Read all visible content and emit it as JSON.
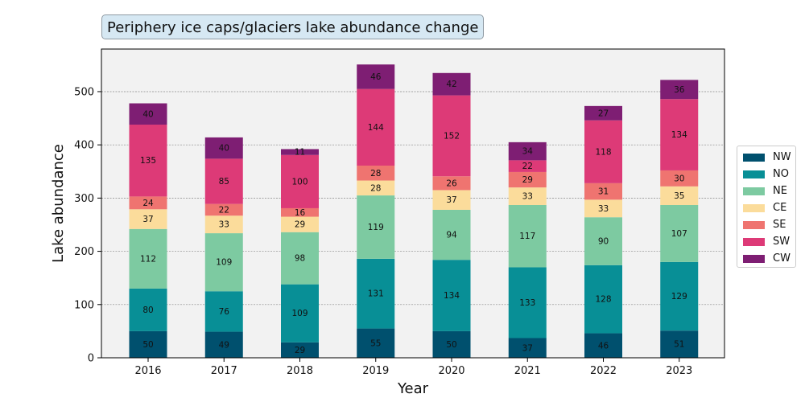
{
  "chart_data": {
    "type": "bar",
    "stacked": true,
    "title": "Periphery ice caps/glaciers lake abundance change",
    "xlabel": "Year",
    "ylabel": "Lake abundance",
    "ylim": [
      0,
      580
    ],
    "yticks": [
      0,
      100,
      200,
      300,
      400,
      500
    ],
    "grid": "y-dashed",
    "legend": "right",
    "categories": [
      "2016",
      "2017",
      "2018",
      "2019",
      "2020",
      "2021",
      "2022",
      "2023"
    ],
    "series": [
      {
        "name": "NW",
        "color": "#00506e",
        "values": [
          50,
          49,
          29,
          55,
          50,
          37,
          46,
          51
        ]
      },
      {
        "name": "NO",
        "color": "#088f96",
        "values": [
          80,
          76,
          109,
          131,
          134,
          133,
          128,
          129
        ]
      },
      {
        "name": "NE",
        "color": "#7dcaa1",
        "values": [
          112,
          109,
          98,
          119,
          94,
          117,
          90,
          107
        ]
      },
      {
        "name": "CE",
        "color": "#fbdc9b",
        "values": [
          37,
          33,
          29,
          28,
          37,
          33,
          33,
          35
        ]
      },
      {
        "name": "SE",
        "color": "#ef7470",
        "values": [
          24,
          22,
          16,
          28,
          26,
          29,
          31,
          30
        ]
      },
      {
        "name": "SW",
        "color": "#dd3a77",
        "values": [
          135,
          85,
          100,
          144,
          152,
          22,
          118,
          134
        ]
      },
      {
        "name": "CW",
        "color": "#7e1e73",
        "values": [
          40,
          40,
          11,
          46,
          42,
          34,
          27,
          36
        ]
      }
    ]
  }
}
